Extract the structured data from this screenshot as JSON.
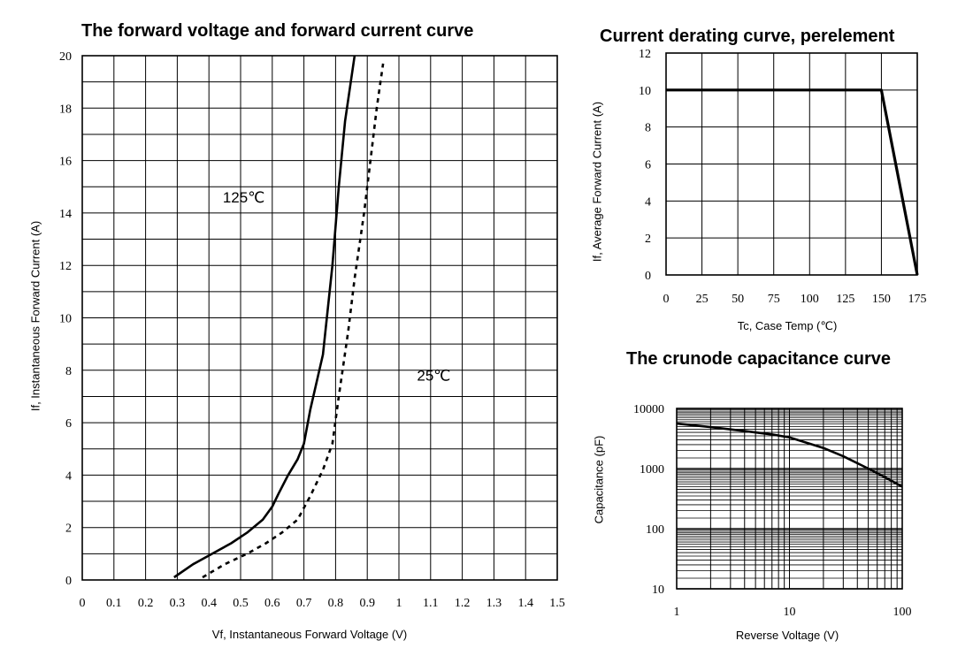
{
  "chart_data": [
    {
      "type": "line",
      "title": "The forward voltage and forward current curve",
      "xlabel": "Vf, Instantaneous Forward Voltage (V)",
      "ylabel": "If, Instantaneous Forward Current (A)",
      "xlim": [
        0,
        1.5
      ],
      "ylim": [
        0,
        20
      ],
      "x_ticks": [
        "0",
        "0.1",
        "0.2",
        "0.3",
        "0.4",
        "0.5",
        "0.6",
        "0.7",
        "0.8",
        "0.9",
        "1",
        "1.1",
        "1.2",
        "1.3",
        "1.4",
        "1.5"
      ],
      "y_ticks": [
        "0",
        "2",
        "4",
        "6",
        "8",
        "10",
        "12",
        "14",
        "16",
        "18",
        "20"
      ],
      "grid": true,
      "series": [
        {
          "name": "125℃",
          "style": "solid",
          "x": [
            0.29,
            0.35,
            0.41,
            0.47,
            0.52,
            0.57,
            0.6,
            0.62,
            0.65,
            0.68,
            0.7,
            0.72,
            0.76,
            0.79,
            0.81,
            0.83,
            0.86
          ],
          "y": [
            0.1,
            0.6,
            1.0,
            1.4,
            1.8,
            2.3,
            2.8,
            3.3,
            4.0,
            4.6,
            5.2,
            6.5,
            8.6,
            12.0,
            15.0,
            17.5,
            20.0
          ]
        },
        {
          "name": "25℃",
          "style": "dashed",
          "x": [
            0.38,
            0.45,
            0.52,
            0.58,
            0.63,
            0.68,
            0.72,
            0.76,
            0.79,
            0.81,
            0.84,
            0.86,
            0.89,
            0.91,
            0.93,
            0.95
          ],
          "y": [
            0.1,
            0.6,
            1.0,
            1.4,
            1.8,
            2.3,
            3.2,
            4.2,
            5.2,
            7.0,
            9.5,
            11.5,
            14.0,
            16.0,
            18.0,
            19.7
          ]
        }
      ],
      "annotations": [
        {
          "text": "125℃",
          "x": 0.51,
          "y": 14.4
        },
        {
          "text": "25℃",
          "x": 1.11,
          "y": 7.6
        }
      ]
    },
    {
      "type": "line",
      "title": "Current derating curve, perelement",
      "xlabel": "Tc, Case Temp (℃)",
      "ylabel": "If, Average Forward Current (A)",
      "xlim": [
        0,
        175
      ],
      "ylim": [
        0,
        12
      ],
      "x_ticks": [
        "0",
        "25",
        "50",
        "75",
        "100",
        "125",
        "150",
        "175"
      ],
      "y_ticks": [
        "0",
        "2",
        "4",
        "6",
        "8",
        "10",
        "12"
      ],
      "grid": true,
      "series": [
        {
          "style": "solid",
          "x": [
            0,
            150,
            175
          ],
          "y": [
            10,
            10,
            0
          ]
        }
      ]
    },
    {
      "type": "line",
      "title": "The crunode capacitance curve",
      "xlabel": "Reverse Voltage (V)",
      "ylabel": "Capacitance (pF)",
      "x_scale": "log",
      "y_scale": "log",
      "xlim": [
        1,
        100
      ],
      "ylim": [
        10,
        10000
      ],
      "x_ticks": [
        "1",
        "10",
        "100"
      ],
      "y_ticks": [
        "10",
        "100",
        "1000",
        "10000"
      ],
      "grid": true,
      "series": [
        {
          "style": "solid",
          "x": [
            1,
            2,
            4,
            7,
            10,
            15,
            20,
            30,
            50,
            70,
            100
          ],
          "y": [
            5600,
            4900,
            4200,
            3700,
            3300,
            2600,
            2200,
            1600,
            1000,
            720,
            500
          ]
        }
      ]
    }
  ]
}
